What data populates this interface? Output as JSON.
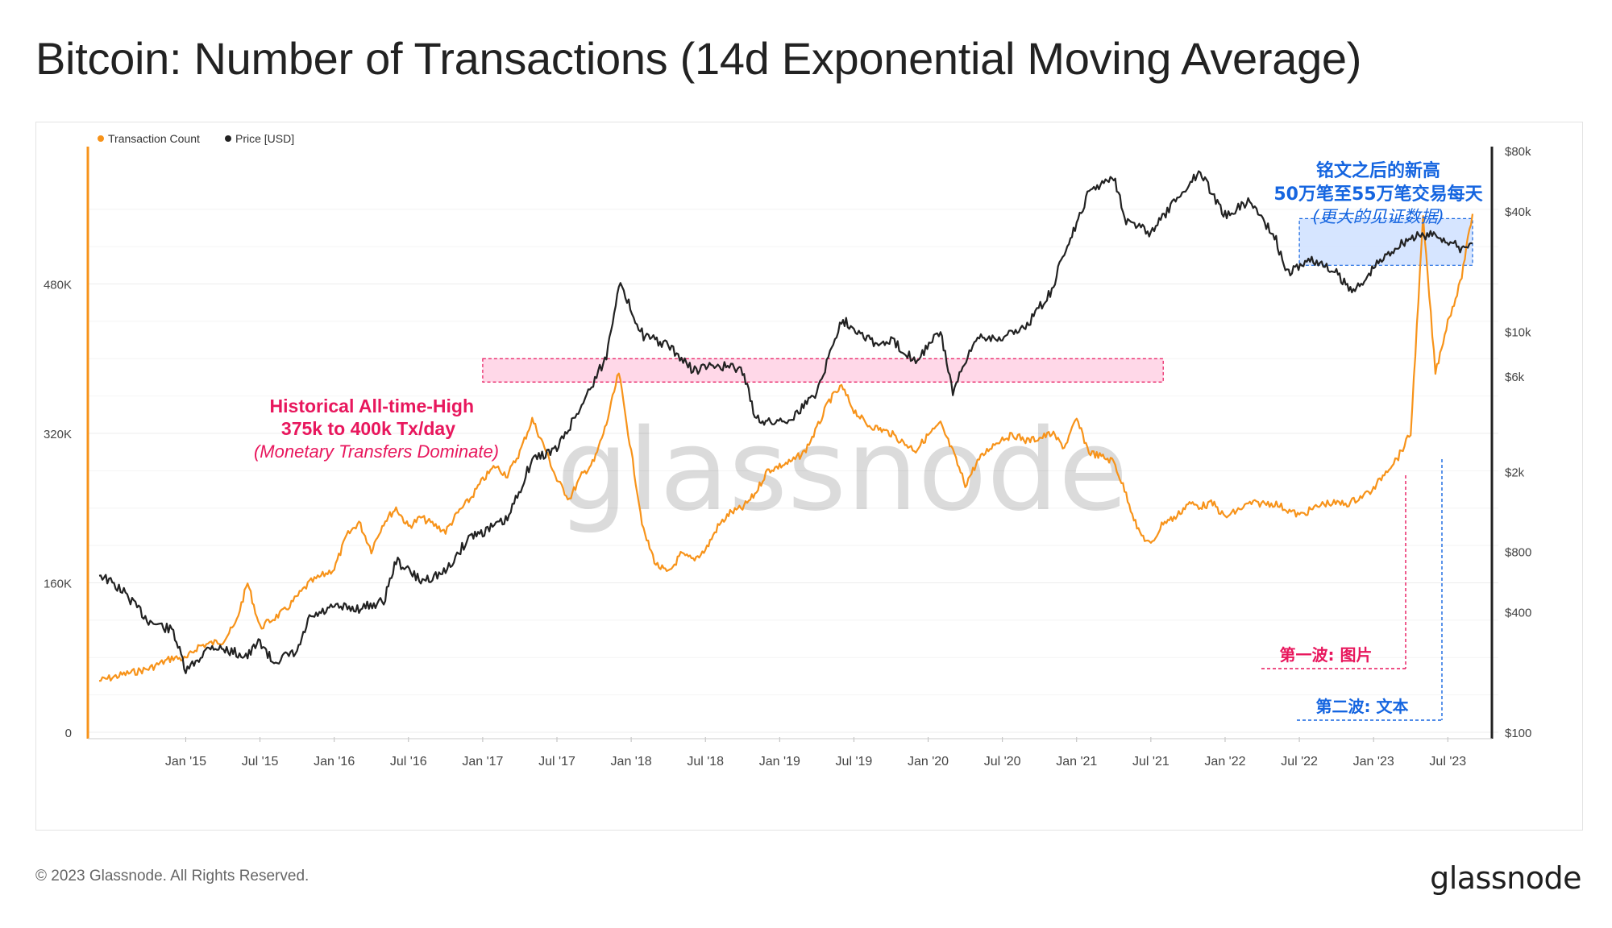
{
  "header": {
    "title": "Bitcoin: Number of Transactions (14d Exponential Moving Average)"
  },
  "footer": {
    "copyright": "© 2023 Glassnode. All Rights Reserved.",
    "logo": "glassnode"
  },
  "watermark": "glassnode",
  "colors": {
    "tx": "#f7931a",
    "price": "#222222",
    "pink": "#e8175d",
    "blue": "#1565e0",
    "pink_fill": "#ffd1e4",
    "blue_fill": "#cfe0ff"
  },
  "chart_data": {
    "type": "line",
    "title": "Bitcoin: Number of Transactions (14d Exponential Moving Average)",
    "legend": {
      "placement": "top-left",
      "items": [
        {
          "label": "Transaction Count",
          "color": "#f7931a"
        },
        {
          "label": "Price [USD]",
          "color": "#222222"
        }
      ]
    },
    "x_ticks": [
      "Jan '15",
      "Jul '15",
      "Jan '16",
      "Jul '16",
      "Jan '17",
      "Jul '17",
      "Jan '18",
      "Jul '18",
      "Jan '19",
      "Jul '19",
      "Jan '20",
      "Jul '20",
      "Jan '21",
      "Jul '21",
      "Jan '22",
      "Jul '22",
      "Jan '23",
      "Jul '23"
    ],
    "x_range": [
      "2014-06",
      "2023-09"
    ],
    "y_left": {
      "label": "Transaction Count",
      "range": [
        0,
        640000
      ],
      "ticks": [
        0,
        160000,
        320000,
        480000
      ],
      "tick_labels": [
        "0",
        "160K",
        "320K",
        "480K"
      ]
    },
    "y_right": {
      "label": "Price [USD]",
      "scale": "log",
      "range": [
        100,
        80000
      ],
      "ticks": [
        100,
        400,
        800,
        2000,
        6000,
        10000,
        40000,
        80000
      ],
      "tick_labels": [
        "$100",
        "$400",
        "$800",
        "$2k",
        "$6k",
        "$10k",
        "$40k",
        "$80k"
      ]
    },
    "grid": true,
    "series": [
      {
        "name": "Transaction Count",
        "axis": "left",
        "points": [
          [
            "2014-06",
            55000
          ],
          [
            "2014-08",
            62000
          ],
          [
            "2014-10",
            68000
          ],
          [
            "2014-12",
            80000
          ],
          [
            "2015-01",
            78000
          ],
          [
            "2015-02",
            92000
          ],
          [
            "2015-04",
            98000
          ],
          [
            "2015-05",
            115000
          ],
          [
            "2015-06",
            160000
          ],
          [
            "2015-07",
            112000
          ],
          [
            "2015-09",
            130000
          ],
          [
            "2015-11",
            160000
          ],
          [
            "2016-01",
            175000
          ],
          [
            "2016-02",
            210000
          ],
          [
            "2016-03",
            225000
          ],
          [
            "2016-04",
            195000
          ],
          [
            "2016-05",
            225000
          ],
          [
            "2016-06",
            240000
          ],
          [
            "2016-07",
            220000
          ],
          [
            "2016-08",
            230000
          ],
          [
            "2016-10",
            215000
          ],
          [
            "2016-11",
            235000
          ],
          [
            "2016-12",
            250000
          ],
          [
            "2017-01",
            270000
          ],
          [
            "2017-02",
            285000
          ],
          [
            "2017-03",
            275000
          ],
          [
            "2017-04",
            300000
          ],
          [
            "2017-05",
            335000
          ],
          [
            "2017-06",
            305000
          ],
          [
            "2017-07",
            270000
          ],
          [
            "2017-08",
            250000
          ],
          [
            "2017-09",
            275000
          ],
          [
            "2017-10",
            290000
          ],
          [
            "2017-11",
            330000
          ],
          [
            "2017-12",
            385000
          ],
          [
            "2018-01",
            300000
          ],
          [
            "2018-02",
            215000
          ],
          [
            "2018-03",
            180000
          ],
          [
            "2018-04",
            170000
          ],
          [
            "2018-05",
            190000
          ],
          [
            "2018-06",
            185000
          ],
          [
            "2018-07",
            195000
          ],
          [
            "2018-08",
            220000
          ],
          [
            "2018-09",
            235000
          ],
          [
            "2018-10",
            240000
          ],
          [
            "2018-11",
            255000
          ],
          [
            "2018-12",
            280000
          ],
          [
            "2019-01",
            285000
          ],
          [
            "2019-02",
            290000
          ],
          [
            "2019-03",
            300000
          ],
          [
            "2019-04",
            325000
          ],
          [
            "2019-05",
            355000
          ],
          [
            "2019-06",
            370000
          ],
          [
            "2019-07",
            345000
          ],
          [
            "2019-08",
            330000
          ],
          [
            "2019-09",
            325000
          ],
          [
            "2019-10",
            320000
          ],
          [
            "2019-11",
            310000
          ],
          [
            "2019-12",
            302000
          ],
          [
            "2020-01",
            318000
          ],
          [
            "2020-02",
            330000
          ],
          [
            "2020-03",
            300000
          ],
          [
            "2020-04",
            265000
          ],
          [
            "2020-05",
            290000
          ],
          [
            "2020-06",
            305000
          ],
          [
            "2020-07",
            315000
          ],
          [
            "2020-08",
            318000
          ],
          [
            "2020-09",
            312000
          ],
          [
            "2020-10",
            315000
          ],
          [
            "2020-11",
            320000
          ],
          [
            "2020-12",
            305000
          ],
          [
            "2021-01",
            335000
          ],
          [
            "2021-02",
            300000
          ],
          [
            "2021-03",
            295000
          ],
          [
            "2021-04",
            290000
          ],
          [
            "2021-05",
            255000
          ],
          [
            "2021-06",
            215000
          ],
          [
            "2021-07",
            200000
          ],
          [
            "2021-08",
            225000
          ],
          [
            "2021-09",
            230000
          ],
          [
            "2021-10",
            245000
          ],
          [
            "2021-11",
            242000
          ],
          [
            "2021-12",
            245000
          ],
          [
            "2022-01",
            230000
          ],
          [
            "2022-03",
            245000
          ],
          [
            "2022-05",
            245000
          ],
          [
            "2022-07",
            232000
          ],
          [
            "2022-09",
            245000
          ],
          [
            "2022-11",
            245000
          ],
          [
            "2023-01",
            260000
          ],
          [
            "2023-02",
            280000
          ],
          [
            "2023-03",
            295000
          ],
          [
            "2023-04",
            320000
          ],
          [
            "2023-05",
            550000
          ],
          [
            "2023-06",
            385000
          ],
          [
            "2023-07",
            440000
          ],
          [
            "2023-08",
            480000
          ],
          [
            "2023-09",
            555000
          ]
        ]
      },
      {
        "name": "Price [USD]",
        "axis": "right",
        "points": [
          [
            "2014-06",
            620
          ],
          [
            "2014-08",
            500
          ],
          [
            "2014-10",
            360
          ],
          [
            "2014-12",
            320
          ],
          [
            "2015-01",
            200
          ],
          [
            "2015-03",
            270
          ],
          [
            "2015-06",
            240
          ],
          [
            "2015-07",
            285
          ],
          [
            "2015-08",
            225
          ],
          [
            "2015-10",
            250
          ],
          [
            "2015-11",
            370
          ],
          [
            "2016-01",
            420
          ],
          [
            "2016-03",
            415
          ],
          [
            "2016-05",
            450
          ],
          [
            "2016-06",
            720
          ],
          [
            "2016-08",
            570
          ],
          [
            "2016-10",
            630
          ],
          [
            "2016-12",
            960
          ],
          [
            "2017-01",
            1000
          ],
          [
            "2017-03",
            1150
          ],
          [
            "2017-05",
            2300
          ],
          [
            "2017-07",
            2600
          ],
          [
            "2017-09",
            4300
          ],
          [
            "2017-11",
            7500
          ],
          [
            "2017-12",
            17500
          ],
          [
            "2018-02",
            9500
          ],
          [
            "2018-04",
            8500
          ],
          [
            "2018-06",
            6400
          ],
          [
            "2018-08",
            6800
          ],
          [
            "2018-10",
            6400
          ],
          [
            "2018-11",
            3800
          ],
          [
            "2018-12",
            3500
          ],
          [
            "2019-02",
            3700
          ],
          [
            "2019-04",
            5000
          ],
          [
            "2019-06",
            11500
          ],
          [
            "2019-07",
            10500
          ],
          [
            "2019-09",
            8500
          ],
          [
            "2019-10",
            9000
          ],
          [
            "2019-12",
            7200
          ],
          [
            "2020-02",
            10000
          ],
          [
            "2020-03",
            5000
          ],
          [
            "2020-05",
            9500
          ],
          [
            "2020-07",
            9300
          ],
          [
            "2020-09",
            10800
          ],
          [
            "2020-11",
            16000
          ],
          [
            "2020-12",
            25000
          ],
          [
            "2021-01",
            34000
          ],
          [
            "2021-02",
            50000
          ],
          [
            "2021-04",
            60000
          ],
          [
            "2021-05",
            36000
          ],
          [
            "2021-07",
            31000
          ],
          [
            "2021-09",
            45000
          ],
          [
            "2021-11",
            64000
          ],
          [
            "2021-12",
            48000
          ],
          [
            "2022-01",
            38000
          ],
          [
            "2022-03",
            45000
          ],
          [
            "2022-05",
            30000
          ],
          [
            "2022-06",
            19500
          ],
          [
            "2022-08",
            23000
          ],
          [
            "2022-10",
            19500
          ],
          [
            "2022-11",
            16500
          ],
          [
            "2022-12",
            16800
          ],
          [
            "2023-01",
            21000
          ],
          [
            "2023-03",
            27000
          ],
          [
            "2023-04",
            29500
          ],
          [
            "2023-06",
            30500
          ],
          [
            "2023-08",
            26000
          ],
          [
            "2023-09",
            27500
          ]
        ]
      }
    ],
    "annotations": [
      {
        "id": "ath",
        "lines": [
          "Historical All-time-High",
          "375k to 400k Tx/day",
          "(Monetary Transfers Dominate)"
        ],
        "color": "#e8175d",
        "band": {
          "x_from": "2017-01",
          "y_from": 375000,
          "y_to": 400000,
          "x_to": "2021-08"
        }
      },
      {
        "id": "new-high",
        "lines": [
          "铭文之后的新高",
          "50万笔至55万笔交易每天",
          "(更大的见证数据)"
        ],
        "color": "#1565e0",
        "band": {
          "x_from": "2022-07",
          "y_from": 500000,
          "y_to": 550000,
          "x_to": "2023-09"
        }
      },
      {
        "id": "wave-1",
        "label": "第一波: 图片",
        "color": "#e8175d",
        "x": "2023-01"
      },
      {
        "id": "wave-2",
        "label": "第二波: 文本",
        "color": "#1565e0",
        "x": "2023-03"
      }
    ]
  }
}
